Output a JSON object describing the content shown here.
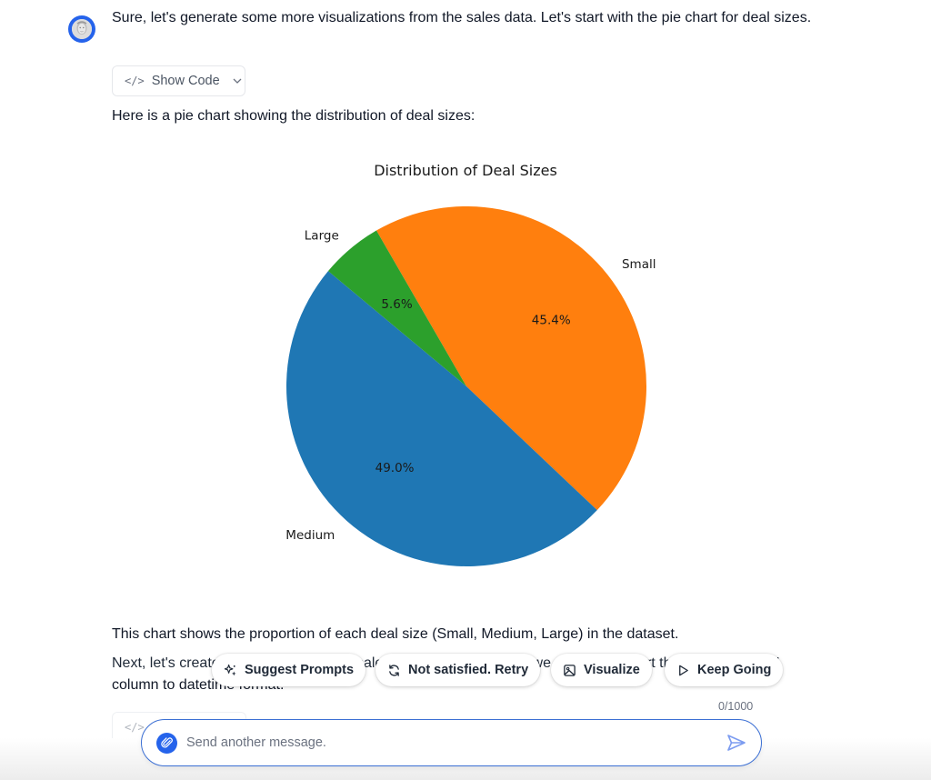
{
  "assistant": {
    "avatar_alt": "assistant-avatar",
    "intro_text": "Sure, let's generate some more visualizations from the sales data. Let's start with the pie chart for deal sizes.",
    "show_code_label": "Show Code",
    "chart_intro": "Here is a pie chart showing the distribution of deal sizes:",
    "chart_summary": "This chart shows the proportion of each deal size (Small, Medium, Large) in the dataset.",
    "next_text_line1": "Next, let's create a line chart showing sales over time. To do this, we need to convert the 'ORDERDATE'",
    "next_text_line2": "column to datetime format.",
    "ghost_show_code_label": "Show Code"
  },
  "chart_data": {
    "type": "pie",
    "title": "Distribution of Deal Sizes",
    "categories": [
      "Small",
      "Medium",
      "Large"
    ],
    "values": [
      45.4,
      49.0,
      5.6
    ],
    "labels_pct": [
      "45.4%",
      "49.0%",
      "5.6%"
    ],
    "colors": [
      "#ff7f0e",
      "#1f77b4",
      "#2ca02c"
    ],
    "startangle": 120,
    "counterclock": false,
    "autopct": "%1.1f%%",
    "legend": "none",
    "xlabel": "",
    "ylabel": ""
  },
  "actions": [
    {
      "label": "Suggest Prompts",
      "icon": "sparkles-icon"
    },
    {
      "label": "Not satisfied. Retry",
      "icon": "refresh-icon"
    },
    {
      "label": "Visualize",
      "icon": "image-icon"
    },
    {
      "label": "Keep Going",
      "icon": "play-icon"
    }
  ],
  "composer": {
    "placeholder": "Send another message.",
    "value": "",
    "char_counter": "0/1000"
  },
  "colors": {
    "accent": "#2563eb",
    "composer_border": "#3b6fd4",
    "send_icon": "#7c9cf0"
  }
}
